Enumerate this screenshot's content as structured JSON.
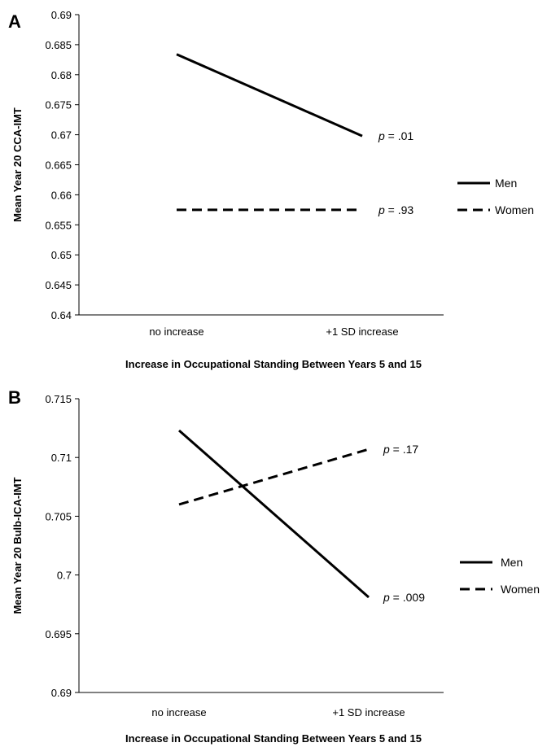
{
  "chart_data": [
    {
      "type": "line",
      "panel_label": "A",
      "categories": [
        "no increase",
        "+1 SD increase"
      ],
      "series": [
        {
          "name": "Men",
          "values": [
            0.6834,
            0.6698
          ],
          "style": "solid"
        },
        {
          "name": "Women",
          "values": [
            0.6575,
            0.6575
          ],
          "style": "dashed"
        }
      ],
      "annotations": [
        {
          "series": "Men",
          "prefix": "p",
          "text": " = .01"
        },
        {
          "series": "Women",
          "prefix": "p",
          "text": " = .93"
        }
      ],
      "xlabel": "Increase in Occupational Standing Between Years 5 and 15",
      "ylabel": "Mean Year 20 CCA-IMT",
      "ylim": [
        0.64,
        0.69
      ],
      "yticks": [
        "0.64",
        "0.645",
        "0.65",
        "0.655",
        "0.66",
        "0.665",
        "0.67",
        "0.675",
        "0.68",
        "0.685",
        "0.69"
      ],
      "grid": false,
      "legend_position": "right"
    },
    {
      "type": "line",
      "panel_label": "B",
      "categories": [
        "no increase",
        "+1 SD increase"
      ],
      "series": [
        {
          "name": "Men",
          "values": [
            0.7123,
            0.6981
          ],
          "style": "solid"
        },
        {
          "name": "Women",
          "values": [
            0.706,
            0.7107
          ],
          "style": "dashed"
        }
      ],
      "annotations": [
        {
          "series": "Women",
          "prefix": "p",
          "text": " = .17"
        },
        {
          "series": "Men",
          "prefix": "p",
          "text": " = .009"
        }
      ],
      "xlabel": "Increase in Occupational Standing Between Years 5 and 15",
      "ylabel": "Mean Year 20 Bulb-ICA-IMT",
      "ylim": [
        0.69,
        0.715
      ],
      "yticks": [
        "0.69",
        "0.695",
        "0.7",
        "0.705",
        "0.71",
        "0.715"
      ],
      "grid": false,
      "legend_position": "right"
    }
  ]
}
